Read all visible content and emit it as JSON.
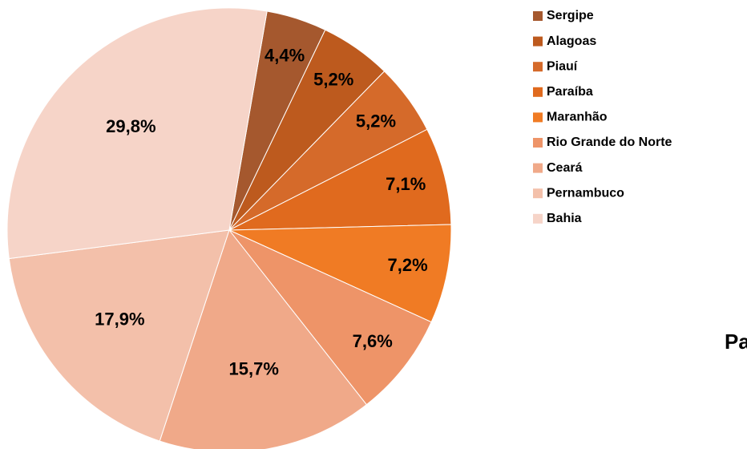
{
  "chart_data": {
    "type": "pie",
    "title": "Pa",
    "categories": [
      "Sergipe",
      "Alagoas",
      "Piauí",
      "Paraíba",
      "Maranhão",
      "Rio Grande do Norte",
      "Ceará",
      "Pernambuco",
      "Bahia"
    ],
    "values": [
      4.4,
      5.2,
      5.2,
      7.1,
      7.2,
      7.6,
      15.7,
      17.9,
      29.8
    ],
    "value_labels": [
      "4,4%",
      "5,2%",
      "5,2%",
      "7,1%",
      "7,2%",
      "7,6%",
      "15,7%",
      "17,9%",
      "29,8%"
    ],
    "colors": [
      "#a5582e",
      "#bd5a1e",
      "#d56a2a",
      "#e06a1e",
      "#f07b24",
      "#ee9468",
      "#f0a989",
      "#f3c0aa",
      "#f6d4c8"
    ]
  }
}
